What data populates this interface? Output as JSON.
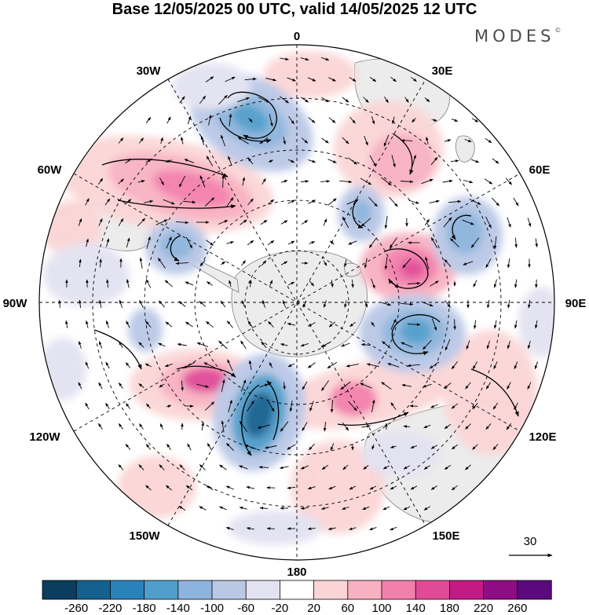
{
  "title": "Base 12/05/2025 00 UTC, valid 14/05/2025 12 UTC",
  "brand": "MODES",
  "brand_mark": "©",
  "longitude_labels": {
    "lon_0": "0",
    "lon_30e": "30E",
    "lon_60e": "60E",
    "lon_90e": "90E",
    "lon_120e": "120E",
    "lon_150e": "150E",
    "lon_180": "180",
    "lon_150w": "150W",
    "lon_120w": "120W",
    "lon_90w": "90W",
    "lon_60w": "60W",
    "lon_30w": "30W"
  },
  "reference_vector": {
    "value": "30"
  },
  "colorbar": {
    "labels": [
      "-260",
      "-220",
      "-180",
      "-140",
      "-100",
      "-60",
      "-20",
      "20",
      "60",
      "100",
      "140",
      "180",
      "220",
      "260"
    ],
    "colors": [
      "#0b3d5e",
      "#14608f",
      "#2a82ba",
      "#4f9ecb",
      "#8db4dc",
      "#bac8e6",
      "#e3e2f1",
      "#ffffff",
      "#fbd5d6",
      "#f8b1c1",
      "#f37fab",
      "#e14a97",
      "#c41a85",
      "#8e0d84",
      "#5a0a7c"
    ]
  },
  "map_colors": {
    "land": "#ececec",
    "coast": "#7f7f7f",
    "grid": "#000000",
    "vector": "#000000",
    "streamline": "#000000"
  }
}
